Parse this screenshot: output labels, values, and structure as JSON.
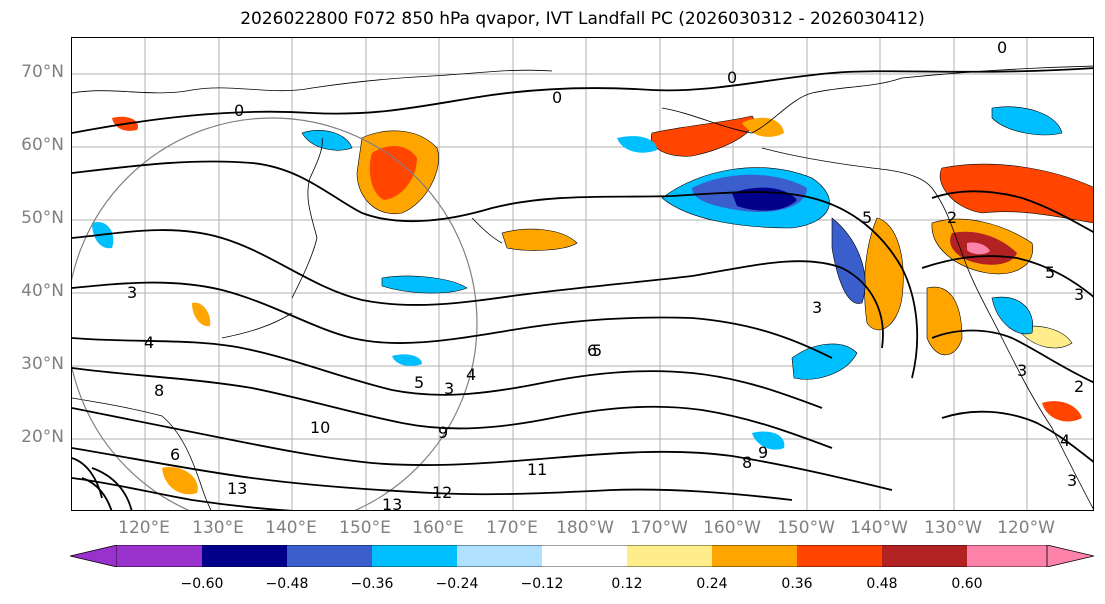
{
  "title": "2026022800 F072 850 hPa qvapor, IVT Landfall PC (2026030312 - 2026030412)",
  "map": {
    "lat_labels": [
      "70°N",
      "60°N",
      "50°N",
      "40°N",
      "30°N",
      "20°N"
    ],
    "lon_labels": [
      "120°E",
      "130°E",
      "140°E",
      "150°E",
      "160°E",
      "170°E",
      "180°W",
      "170°W",
      "160°W",
      "150°W",
      "140°W",
      "130°W",
      "120°W"
    ],
    "contour_labels": [
      "0",
      "0",
      "0",
      "0",
      "3",
      "4",
      "5",
      "3",
      "4",
      "5",
      "10",
      "9",
      "11",
      "13",
      "12",
      "13",
      "8",
      "9",
      "6",
      "8",
      "3",
      "3",
      "2",
      "5",
      "3",
      "6",
      "2",
      "4",
      "5",
      "3"
    ]
  },
  "colorbar": {
    "ticks": [
      "−0.60",
      "−0.48",
      "−0.36",
      "−0.24",
      "−0.12",
      "0.12",
      "0.24",
      "0.36",
      "0.48",
      "0.60"
    ],
    "colors": [
      "#9932cc",
      "#00008b",
      "#3a5fcd",
      "#00bfff",
      "#b0e2ff",
      "#ffffff",
      "#ffec8b",
      "#ffa500",
      "#ff4500",
      "#b22222",
      "#ff82ab"
    ]
  }
}
